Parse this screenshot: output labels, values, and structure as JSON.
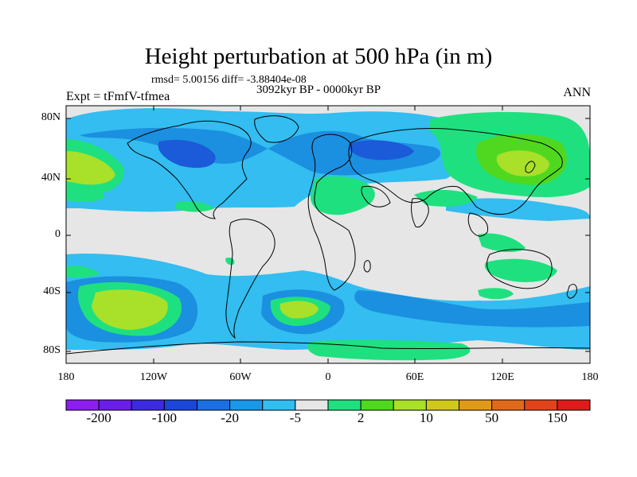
{
  "header": {
    "title": "Height perturbation at 500 hPa (in m)",
    "stats": "rmsd= 5.00156 diff= -3.88404e-08",
    "period": "3092kyr BP - 0000kyr BP",
    "experiment": "Expt = tFmfV-tfmea",
    "season": "ANN"
  },
  "map": {
    "lat_ticks": [
      "80N",
      "40N",
      "0",
      "40S",
      "80S"
    ],
    "lon_ticks": [
      "180",
      "120W",
      "60W",
      "0",
      "60E",
      "120E",
      "180"
    ],
    "colors": {
      "background": "#e6e6e6",
      "neg1": "#33bdf0",
      "neg2": "#1b8fe0",
      "neg3": "#1b5ad8",
      "pos1": "#1fe07f",
      "pos2": "#4fd81f",
      "pos3": "#a9e02a",
      "coast": "#000000"
    }
  },
  "colorbar": {
    "labels": [
      "-200",
      "-100",
      "-20",
      "-5",
      "2",
      "10",
      "50",
      "150"
    ],
    "colors": [
      "#8c1ef0",
      "#6a1ee8",
      "#3c2ae0",
      "#1b46d8",
      "#1b6fe0",
      "#1b97e8",
      "#33bdf0",
      "#e6e6e6",
      "#1fe07f",
      "#4fd81f",
      "#a9e02a",
      "#d0c81b",
      "#e09a1b",
      "#e06a1b",
      "#e0441b",
      "#e01b1b"
    ]
  }
}
